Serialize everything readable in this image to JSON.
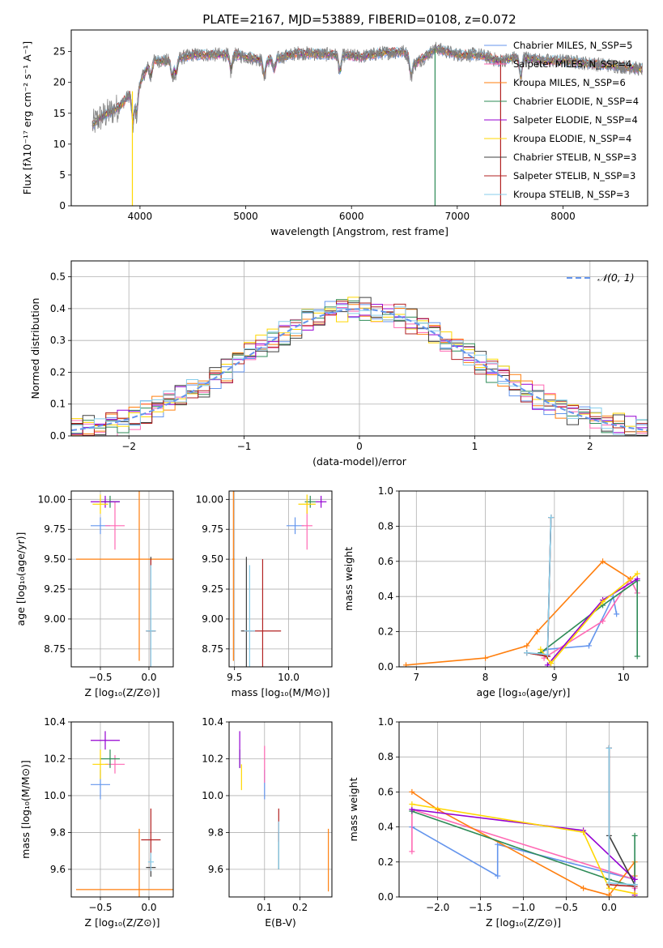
{
  "title": "PLATE=2167, MJD=53889, FIBERID=0108, z=0.072",
  "chart_data": [
    {
      "id": "spectrum",
      "type": "line",
      "xlabel": "wavelength [Angstrom, rest frame]",
      "ylabel": "Flux [fλ10⁻¹⁷ erg cm⁻² s⁻¹ A⁻¹]",
      "xlim": [
        3350,
        8800
      ],
      "ylim": [
        0,
        28.5
      ],
      "xticks": [
        4000,
        5000,
        6000,
        7000,
        8000
      ],
      "yticks": [
        0,
        5,
        10,
        15,
        20,
        25
      ],
      "legend_position": "right",
      "series": [
        {
          "name": "Chabrier MILES, N_SSP=5",
          "color": "#6495ed"
        },
        {
          "name": "Salpeter MILES, N_SSP=4",
          "color": "#ff69b4"
        },
        {
          "name": "Kroupa MILES, N_SSP=6",
          "color": "#ff7f0e"
        },
        {
          "name": "Chabrier ELODIE, N_SSP=4",
          "color": "#2e8b57"
        },
        {
          "name": "Salpeter ELODIE, N_SSP=4",
          "color": "#9400d3"
        },
        {
          "name": "Kroupa ELODIE, N_SSP=4",
          "color": "#ffd700"
        },
        {
          "name": "Chabrier STELIB, N_SSP=3",
          "color": "#404040"
        },
        {
          "name": "Salpeter STELIB, N_SSP=3",
          "color": "#b22222"
        },
        {
          "name": "Kroupa STELIB, N_SSP=3",
          "color": "#87ceeb"
        }
      ],
      "data_color": "#808080",
      "data_anchors": {
        "wavelength": [
          3550,
          3600,
          3700,
          3800,
          3900,
          4000,
          4100,
          4300,
          4500,
          4700,
          4900,
          5200,
          5500,
          5800,
          6100,
          6300,
          6500,
          6600,
          6800,
          7000,
          7200,
          7400,
          7600,
          7800,
          8000,
          8300,
          8600,
          8800
        ],
        "flux": [
          13,
          14,
          15,
          16,
          18,
          20,
          23.5,
          23.5,
          24.5,
          24.5,
          24.5,
          23.5,
          24.8,
          24.5,
          24.2,
          24.8,
          25,
          23,
          25.5,
          24.5,
          24.5,
          23.5,
          24.2,
          23.5,
          23.5,
          23,
          22.5,
          22
        ]
      }
    },
    {
      "id": "residuals",
      "type": "histogram",
      "xlabel": "(data-model)/error",
      "ylabel": "Normed distribution",
      "xlim": [
        -2.5,
        2.5
      ],
      "ylim": [
        0,
        0.55
      ],
      "xticks": [
        -2,
        -1,
        0,
        1,
        2
      ],
      "yticks": [
        0.0,
        0.1,
        0.2,
        0.3,
        0.4,
        0.5
      ],
      "reference_curve": {
        "name": "𝒩(0, 1)",
        "color": "#6495ed",
        "style": "dashed"
      },
      "bin_width": 0.1,
      "legend_position": "top-right"
    },
    {
      "id": "age_vs_Z",
      "type": "scatter",
      "xlabel": "Z [log₁₀(Z/Z⊙)]",
      "ylabel": "age  [log₁₀(age/yr)]",
      "xlim": [
        -0.8,
        0.25
      ],
      "ylim": [
        8.6,
        10.07
      ],
      "xticks": [
        -0.5,
        0.0
      ],
      "yticks": [
        8.75,
        9.0,
        9.25,
        9.5,
        9.75,
        10.0
      ],
      "points": [
        {
          "model": "Chabrier MILES",
          "x": -0.5,
          "xerr": 0.1,
          "y": 9.78,
          "yerr": 0.07
        },
        {
          "model": "Salpeter MILES",
          "x": -0.35,
          "xerr": 0.1,
          "y": 9.78,
          "yerr": 0.2
        },
        {
          "model": "Kroupa MILES",
          "x": -0.1,
          "xerr": 0.65,
          "y": 9.5,
          "yerr": 0.85
        },
        {
          "model": "Chabrier ELODIE",
          "x": -0.4,
          "xerr": 0.1,
          "y": 9.98,
          "yerr": 0.05
        },
        {
          "model": "Salpeter ELODIE",
          "x": -0.45,
          "xerr": 0.15,
          "y": 9.98,
          "yerr": 0.05
        },
        {
          "model": "Kroupa ELODIE",
          "x": -0.5,
          "xerr": 0.08,
          "y": 9.96,
          "yerr": 0.08
        },
        {
          "model": "Chabrier STELIB",
          "x": 0.02,
          "xerr": 0.05,
          "y": 8.9,
          "yerr": 0.62
        },
        {
          "model": "Salpeter STELIB",
          "x": 0.02,
          "xerr": 0.05,
          "y": 8.9,
          "yerr": 0.6
        },
        {
          "model": "Kroupa STELIB",
          "x": 0.02,
          "xerr": 0.05,
          "y": 8.9,
          "yerr": 0.55
        }
      ]
    },
    {
      "id": "age_vs_mass",
      "type": "scatter",
      "xlabel": "mass [log₁₀(M/M⊙)]",
      "xlim": [
        9.45,
        10.4
      ],
      "ylim": [
        8.6,
        10.07
      ],
      "xticks": [
        9.5,
        10.0
      ],
      "yticks": [
        8.75,
        9.0,
        9.25,
        9.5,
        9.75,
        10.0
      ],
      "points": [
        {
          "model": "Chabrier MILES",
          "x": 10.06,
          "xerr": 0.08,
          "y": 9.78,
          "yerr": 0.07
        },
        {
          "model": "Salpeter MILES",
          "x": 10.17,
          "xerr": 0.05,
          "y": 9.78,
          "yerr": 0.2
        },
        {
          "model": "Kroupa MILES",
          "x": 9.49,
          "xerr": 0.01,
          "y": 9.5,
          "yerr": 0.85
        },
        {
          "model": "Chabrier ELODIE",
          "x": 10.2,
          "xerr": 0.05,
          "y": 9.98,
          "yerr": 0.05
        },
        {
          "model": "Salpeter ELODIE",
          "x": 10.3,
          "xerr": 0.05,
          "y": 9.98,
          "yerr": 0.05
        },
        {
          "model": "Kroupa ELODIE",
          "x": 10.17,
          "xerr": 0.08,
          "y": 9.96,
          "yerr": 0.08
        },
        {
          "model": "Chabrier STELIB",
          "x": 9.61,
          "xerr": 0.05,
          "y": 8.9,
          "yerr": 0.62
        },
        {
          "model": "Salpeter STELIB",
          "x": 9.76,
          "xerr": 0.17,
          "y": 8.9,
          "yerr": 0.6
        },
        {
          "model": "Kroupa STELIB",
          "x": 9.64,
          "xerr": 0.05,
          "y": 8.9,
          "yerr": 0.55
        }
      ]
    },
    {
      "id": "weight_vs_age",
      "type": "line",
      "xlabel": "age  [log₁₀(age/yr)]",
      "ylabel": "mass weight",
      "xlim": [
        6.75,
        10.35
      ],
      "ylim": [
        0,
        1
      ],
      "xticks": [
        7,
        8,
        9,
        10
      ],
      "yticks": [
        0.0,
        0.2,
        0.4,
        0.6,
        0.8,
        1.0
      ],
      "series": [
        {
          "model": "Chabrier MILES",
          "x": [
            8.8,
            8.9,
            9.5,
            9.85,
            9.9
          ],
          "y": [
            0.08,
            0.1,
            0.12,
            0.4,
            0.3
          ]
        },
        {
          "model": "Salpeter MILES",
          "x": [
            8.85,
            9.7,
            10.1,
            10.2
          ],
          "y": [
            0.05,
            0.26,
            0.5,
            0.42
          ]
        },
        {
          "model": "Kroupa MILES",
          "x": [
            6.85,
            8.0,
            8.6,
            8.75,
            9.7,
            10.1
          ],
          "y": [
            0.01,
            0.05,
            0.12,
            0.2,
            0.6,
            0.5
          ]
        },
        {
          "model": "Chabrier ELODIE",
          "x": [
            8.8,
            9.7,
            10.2,
            10.2
          ],
          "y": [
            0.08,
            0.35,
            0.49,
            0.06
          ]
        },
        {
          "model": "Salpeter ELODIE",
          "x": [
            8.9,
            9.7,
            10.2
          ],
          "y": [
            0.01,
            0.38,
            0.5
          ]
        },
        {
          "model": "Kroupa ELODIE",
          "x": [
            8.8,
            8.95,
            9.7,
            10.2
          ],
          "y": [
            0.1,
            0.02,
            0.37,
            0.53
          ]
        },
        {
          "model": "Chabrier STELIB",
          "x": [
            8.6,
            8.9,
            8.95
          ],
          "y": [
            0.08,
            0.06,
            0.85
          ]
        },
        {
          "model": "Salpeter STELIB",
          "x": [
            8.6,
            8.9,
            8.95
          ],
          "y": [
            0.08,
            0.06,
            0.85
          ]
        },
        {
          "model": "Kroupa STELIB",
          "x": [
            8.6,
            8.9,
            8.95
          ],
          "y": [
            0.08,
            0.07,
            0.85
          ]
        }
      ]
    },
    {
      "id": "mass_vs_Z",
      "type": "scatter",
      "xlabel": "Z [log₁₀(Z/Z⊙)]",
      "ylabel": "mass [log₁₀(M/M⊙)]",
      "xlim": [
        -0.8,
        0.25
      ],
      "ylim": [
        9.45,
        10.4
      ],
      "xticks": [
        -0.5,
        0.0
      ],
      "yticks": [
        9.6,
        9.8,
        10.0,
        10.2,
        10.4
      ],
      "points": [
        {
          "model": "Chabrier MILES",
          "x": -0.5,
          "xerr": 0.1,
          "y": 10.06,
          "yerr": 0.08
        },
        {
          "model": "Salpeter MILES",
          "x": -0.35,
          "xerr": 0.1,
          "y": 10.17,
          "yerr": 0.05
        },
        {
          "model": "Kroupa MILES",
          "x": -0.1,
          "xerr": 0.65,
          "y": 9.49,
          "yerr": 0.33
        },
        {
          "model": "Chabrier ELODIE",
          "x": -0.4,
          "xerr": 0.1,
          "y": 10.2,
          "yerr": 0.05
        },
        {
          "model": "Salpeter ELODIE",
          "x": -0.45,
          "xerr": 0.15,
          "y": 10.3,
          "yerr": 0.05
        },
        {
          "model": "Kroupa ELODIE",
          "x": -0.5,
          "xerr": 0.08,
          "y": 10.17,
          "yerr": 0.08
        },
        {
          "model": "Chabrier STELIB",
          "x": 0.02,
          "xerr": 0.05,
          "y": 9.61,
          "yerr": 0.05
        },
        {
          "model": "Salpeter STELIB",
          "x": 0.02,
          "xerr": 0.1,
          "y": 9.76,
          "yerr": 0.17
        },
        {
          "model": "Kroupa STELIB",
          "x": 0.02,
          "xerr": 0.03,
          "y": 9.64,
          "yerr": 0.05
        }
      ]
    },
    {
      "id": "mass_vs_ebv",
      "type": "scatter",
      "xlabel": "E(B-V)",
      "xlim": [
        0.0,
        0.29
      ],
      "ylim": [
        9.45,
        10.4
      ],
      "xticks": [
        0.1,
        0.2
      ],
      "yticks": [
        9.6,
        9.8,
        10.0,
        10.2,
        10.4
      ],
      "points": [
        {
          "model": "Chabrier MILES",
          "x": 0.1,
          "y": 10.06,
          "yerr": 0.08
        },
        {
          "model": "Salpeter MILES",
          "x": 0.1,
          "y": 10.17,
          "yerr": 0.1
        },
        {
          "model": "Kroupa MILES",
          "x": 0.28,
          "y": 9.65,
          "yerr": 0.17
        },
        {
          "model": "Chabrier ELODIE",
          "x": 0.03,
          "y": 10.2,
          "yerr": 0.05
        },
        {
          "model": "Salpeter ELODIE",
          "x": 0.03,
          "y": 10.25,
          "yerr": 0.1
        },
        {
          "model": "Kroupa ELODIE",
          "x": 0.035,
          "y": 10.1,
          "yerr": 0.07
        },
        {
          "model": "Chabrier STELIB",
          "x": 0.14,
          "y": 9.7,
          "yerr": 0.1
        },
        {
          "model": "Salpeter STELIB",
          "x": 0.14,
          "y": 9.84,
          "yerr": 0.09
        },
        {
          "model": "Kroupa STELIB",
          "x": 0.14,
          "y": 9.73,
          "yerr": 0.13
        }
      ]
    },
    {
      "id": "weight_vs_Z",
      "type": "line",
      "xlabel": "Z [log₁₀(Z/Z⊙)]",
      "ylabel": "mass weight",
      "xlim": [
        -2.45,
        0.45
      ],
      "ylim": [
        0,
        1
      ],
      "xticks": [
        -2.0,
        -1.5,
        -1.0,
        -0.5,
        0.0
      ],
      "yticks": [
        0.0,
        0.2,
        0.4,
        0.6,
        0.8,
        1.0
      ],
      "series": [
        {
          "model": "Chabrier MILES",
          "x": [
            -2.3,
            -1.3,
            -1.3,
            0.3,
            0.3
          ],
          "y": [
            0.4,
            0.12,
            0.3,
            0.1,
            0.07
          ]
        },
        {
          "model": "Salpeter MILES",
          "x": [
            -2.3,
            -2.3,
            0.3,
            0.3
          ],
          "y": [
            0.26,
            0.5,
            0.1,
            0.05
          ]
        },
        {
          "model": "Kroupa MILES",
          "x": [
            -2.3,
            -2.0,
            -0.3,
            0.0,
            0.3,
            0.3
          ],
          "y": [
            0.6,
            0.5,
            0.05,
            0.01,
            0.2,
            0.12
          ]
        },
        {
          "model": "Chabrier ELODIE",
          "x": [
            -2.3,
            0.0,
            0.3,
            0.3
          ],
          "y": [
            0.49,
            0.1,
            0.06,
            0.35
          ]
        },
        {
          "model": "Salpeter ELODIE",
          "x": [
            -2.3,
            -0.3,
            0.3,
            0.3
          ],
          "y": [
            0.5,
            0.38,
            0.1,
            0.01
          ]
        },
        {
          "model": "Kroupa ELODIE",
          "x": [
            -2.3,
            -0.3,
            0.0,
            0.3
          ],
          "y": [
            0.53,
            0.37,
            0.05,
            0.02
          ]
        },
        {
          "model": "Chabrier STELIB",
          "x": [
            0.0,
            0.0,
            0.3
          ],
          "y": [
            0.85,
            0.35,
            0.07
          ]
        },
        {
          "model": "Salpeter STELIB",
          "x": [
            0.0,
            0.0,
            0.3
          ],
          "y": [
            0.85,
            0.07,
            0.06
          ]
        },
        {
          "model": "Kroupa STELIB",
          "x": [
            0.0,
            0.0,
            0.3
          ],
          "y": [
            0.85,
            0.08,
            0.07
          ]
        }
      ]
    }
  ]
}
